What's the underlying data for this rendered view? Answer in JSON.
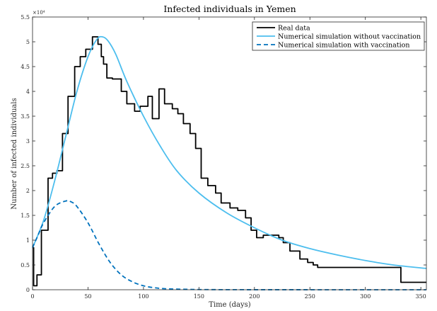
{
  "chart_data": {
    "type": "line",
    "title": "Infected individuals in Yemen",
    "xlabel": "Time (days)",
    "ylabel": "Number of infected individuals",
    "xlim": [
      0,
      355
    ],
    "ylim": [
      0,
      55000
    ],
    "x_ticks": [
      0,
      50,
      100,
      150,
      200,
      250,
      300,
      350
    ],
    "x_tick_labels": [
      "0",
      "50",
      "100",
      "150",
      "200",
      "250",
      "300",
      "350"
    ],
    "y_ticks": [
      0,
      5000,
      10000,
      15000,
      20000,
      25000,
      30000,
      35000,
      40000,
      45000,
      50000,
      55000
    ],
    "y_tick_labels": [
      "0",
      "0.5",
      "1",
      "1.5",
      "2",
      "2.5",
      "3",
      "3.5",
      "4",
      "4.5",
      "5",
      "5.5"
    ],
    "y_exponent_label": "×10⁴",
    "grid": false,
    "legend_position": "top-right",
    "series": [
      {
        "name": "Real data",
        "style": "step",
        "color": "#000000",
        "dash": "solid",
        "x": [
          0,
          1,
          4,
          8,
          14,
          18,
          22,
          27,
          32,
          38,
          43,
          48,
          54,
          59,
          62,
          64,
          67,
          72,
          80,
          85,
          92,
          97,
          104,
          108,
          114,
          119,
          126,
          131,
          136,
          142,
          147,
          152,
          158,
          165,
          170,
          178,
          185,
          192,
          197,
          202,
          208,
          215,
          222,
          226,
          232,
          241,
          248,
          253,
          257,
          265,
          275,
          285,
          295,
          305,
          320,
          332,
          355
        ],
        "y": [
          8500,
          800,
          3000,
          12000,
          22500,
          23500,
          24000,
          31500,
          39000,
          45000,
          47000,
          48500,
          51000,
          49500,
          47000,
          45500,
          42700,
          42500,
          40000,
          37500,
          36000,
          37000,
          39000,
          34500,
          40500,
          37500,
          36500,
          35500,
          33500,
          31500,
          28500,
          22500,
          21000,
          19500,
          17500,
          16500,
          16000,
          14500,
          12000,
          10500,
          11000,
          11000,
          10500,
          9500,
          7800,
          6200,
          5500,
          5000,
          4500,
          4500,
          4500,
          4500,
          4500,
          4500,
          4500,
          1500,
          1500
        ]
      },
      {
        "name": "Numerical simulation without vaccination",
        "style": "line",
        "color": "#4DBEEE",
        "dash": "solid",
        "x": [
          0,
          10,
          20,
          30,
          40,
          50,
          58,
          63,
          68,
          75,
          85,
          100,
          115,
          130,
          150,
          175,
          200,
          225,
          250,
          275,
          300,
          325,
          355
        ],
        "y": [
          8500,
          14000,
          22000,
          31000,
          40000,
          47000,
          50500,
          51000,
          50200,
          47500,
          42000,
          35000,
          29000,
          24000,
          19500,
          15500,
          12500,
          10000,
          8300,
          7000,
          5900,
          5000,
          4300
        ]
      },
      {
        "name": "Numerical simulation with vaccination",
        "style": "line",
        "color": "#0072BD",
        "dash": "dashed",
        "x": [
          0,
          5,
          10,
          20,
          30,
          35,
          40,
          50,
          60,
          70,
          80,
          90,
          100,
          110,
          120,
          140,
          160,
          200,
          250,
          300,
          355
        ],
        "y": [
          8500,
          11000,
          13500,
          16800,
          17900,
          17700,
          16800,
          13500,
          9200,
          5500,
          3000,
          1600,
          800,
          400,
          200,
          80,
          30,
          10,
          5,
          2,
          0
        ]
      }
    ]
  }
}
